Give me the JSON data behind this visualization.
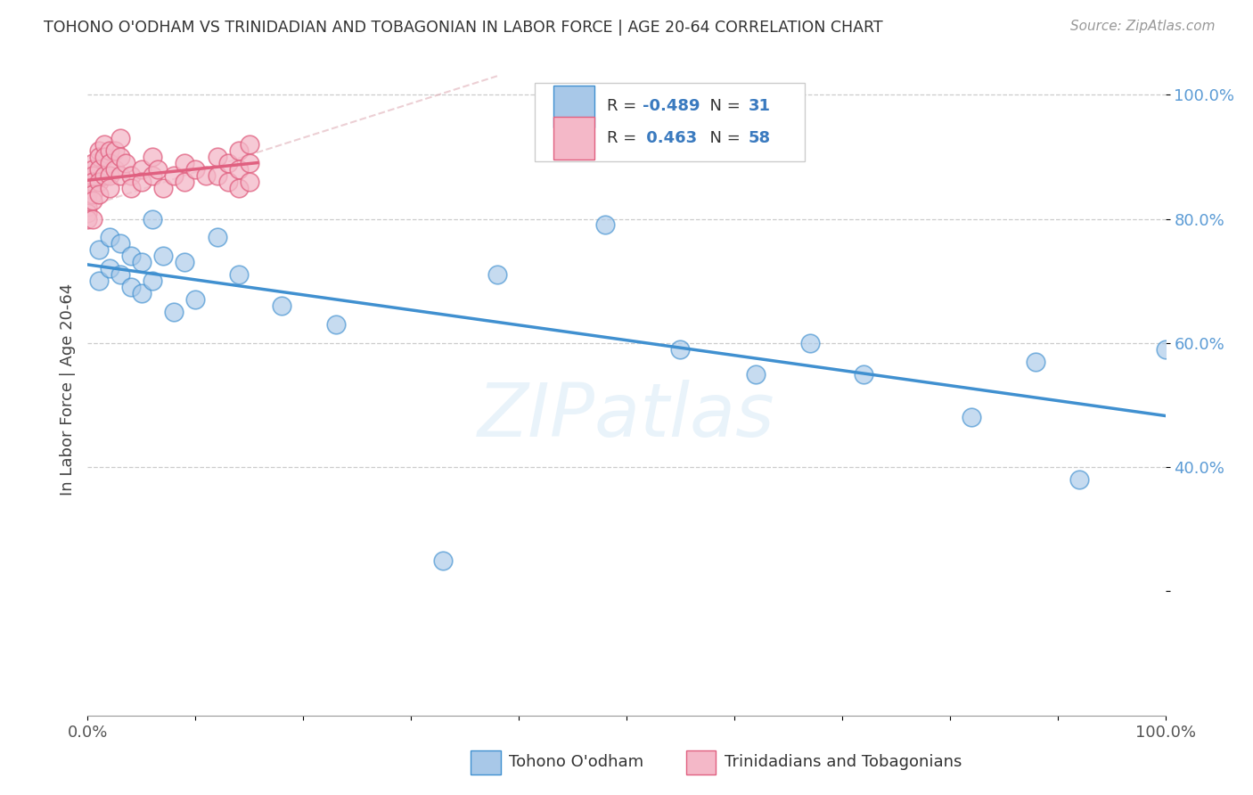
{
  "title": "TOHONO O'ODHAM VS TRINIDADIAN AND TOBAGONIAN IN LABOR FORCE | AGE 20-64 CORRELATION CHART",
  "source": "Source: ZipAtlas.com",
  "ylabel": "In Labor Force | Age 20-64",
  "legend_label1": "Tohono O'odham",
  "legend_label2": "Trinidadians and Tobagonians",
  "R1": -0.489,
  "N1": 31,
  "R2": 0.463,
  "N2": 58,
  "color_blue": "#a8c8e8",
  "color_pink": "#f4b8c8",
  "color_blue_line": "#4090d0",
  "color_pink_line": "#e06080",
  "color_dashed": "#e0b0b8",
  "watermark": "ZIPatlas",
  "blue_points_x": [
    0.01,
    0.01,
    0.02,
    0.02,
    0.03,
    0.03,
    0.04,
    0.04,
    0.05,
    0.05,
    0.06,
    0.06,
    0.07,
    0.08,
    0.09,
    0.1,
    0.12,
    0.14,
    0.18,
    0.23,
    0.33,
    0.38,
    0.48,
    0.55,
    0.62,
    0.67,
    0.72,
    0.82,
    0.88,
    0.92,
    1.0
  ],
  "blue_points_y": [
    0.75,
    0.7,
    0.77,
    0.72,
    0.76,
    0.71,
    0.74,
    0.69,
    0.73,
    0.68,
    0.8,
    0.7,
    0.74,
    0.65,
    0.73,
    0.67,
    0.77,
    0.71,
    0.66,
    0.63,
    0.25,
    0.71,
    0.79,
    0.59,
    0.55,
    0.6,
    0.55,
    0.48,
    0.57,
    0.38,
    0.59
  ],
  "pink_points_x": [
    0.0,
    0.0,
    0.0,
    0.0,
    0.0,
    0.0,
    0.0,
    0.0,
    0.0,
    0.0,
    0.005,
    0.005,
    0.005,
    0.005,
    0.005,
    0.005,
    0.005,
    0.01,
    0.01,
    0.01,
    0.01,
    0.01,
    0.015,
    0.015,
    0.015,
    0.02,
    0.02,
    0.02,
    0.02,
    0.025,
    0.025,
    0.03,
    0.03,
    0.03,
    0.035,
    0.04,
    0.04,
    0.05,
    0.05,
    0.06,
    0.06,
    0.065,
    0.07,
    0.08,
    0.09,
    0.09,
    0.1,
    0.11,
    0.12,
    0.12,
    0.13,
    0.13,
    0.14,
    0.14,
    0.14,
    0.15,
    0.15,
    0.15
  ],
  "pink_points_y": [
    0.87,
    0.86,
    0.85,
    0.85,
    0.84,
    0.84,
    0.83,
    0.82,
    0.81,
    0.8,
    0.89,
    0.88,
    0.87,
    0.86,
    0.84,
    0.83,
    0.8,
    0.91,
    0.9,
    0.88,
    0.86,
    0.84,
    0.92,
    0.9,
    0.87,
    0.91,
    0.89,
    0.87,
    0.85,
    0.91,
    0.88,
    0.93,
    0.9,
    0.87,
    0.89,
    0.87,
    0.85,
    0.88,
    0.86,
    0.9,
    0.87,
    0.88,
    0.85,
    0.87,
    0.89,
    0.86,
    0.88,
    0.87,
    0.9,
    0.87,
    0.89,
    0.86,
    0.91,
    0.88,
    0.85,
    0.92,
    0.89,
    0.86
  ],
  "xlim": [
    0.0,
    1.0
  ],
  "ylim": [
    0.0,
    1.05
  ],
  "yticks": [
    0.2,
    0.4,
    0.6,
    0.8,
    1.0
  ],
  "ytick_labels": [
    "",
    "40.0%",
    "60.0%",
    "80.0%",
    "100.0%"
  ],
  "xticks": [
    0.0,
    0.1,
    0.2,
    0.3,
    0.4,
    0.5,
    0.6,
    0.7,
    0.8,
    0.9,
    1.0
  ],
  "xtick_labels": [
    "0.0%",
    "",
    "",
    "",
    "",
    "",
    "",
    "",
    "",
    "",
    "100.0%"
  ],
  "background_color": "#ffffff"
}
